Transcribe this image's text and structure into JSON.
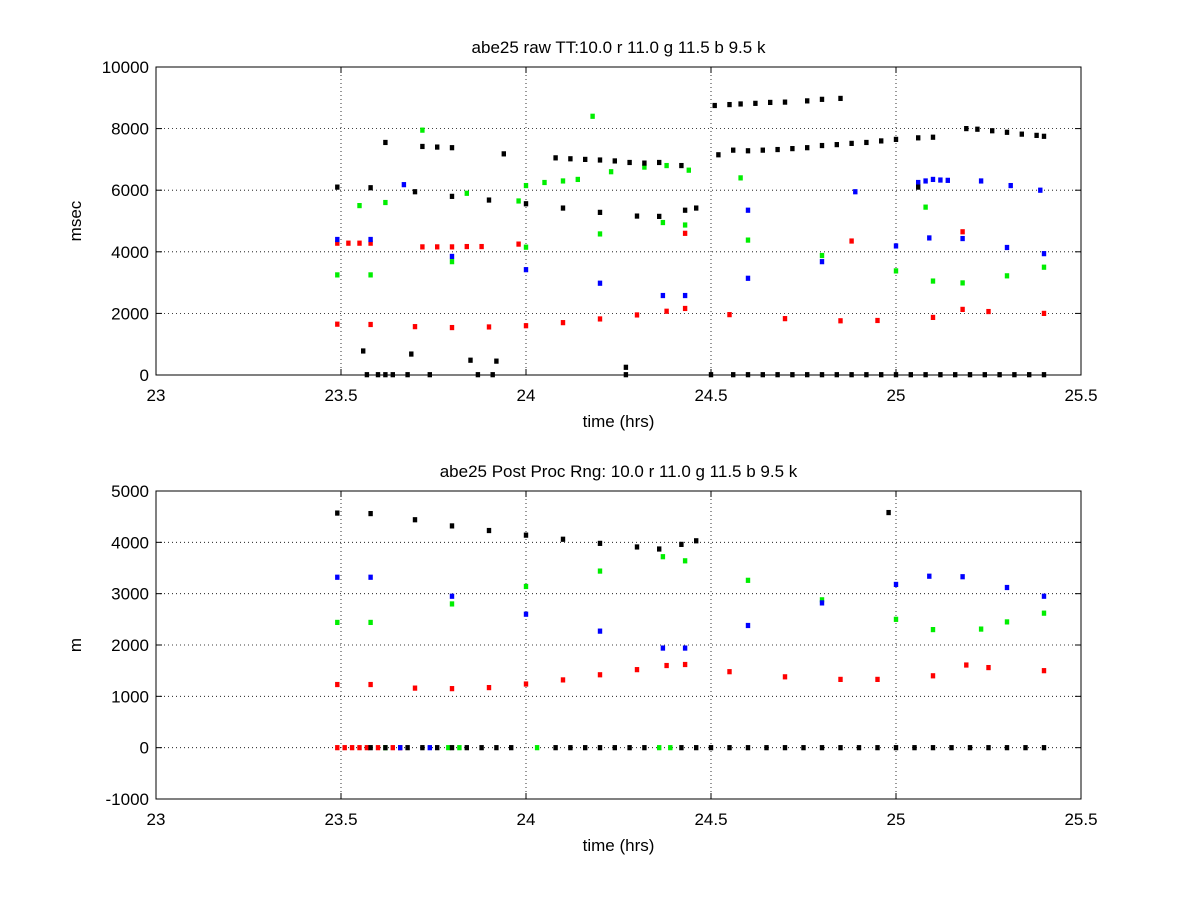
{
  "chart_data": [
    {
      "type": "scatter",
      "title": "abe25 raw TT:10.0 r  11.0 g  11.5 b  9.5 k",
      "xlabel": "time (hrs)",
      "ylabel": "msec",
      "xlim": [
        23,
        25.5
      ],
      "ylim": [
        0,
        10000
      ],
      "xticks": [
        23,
        23.5,
        24,
        24.5,
        25,
        25.5
      ],
      "xtick_labels": [
        "23",
        "23.5",
        "24",
        "24.5",
        "25",
        "25.5"
      ],
      "yticks": [
        0,
        2000,
        4000,
        6000,
        8000,
        10000
      ],
      "ytick_labels": [
        "0",
        "2000",
        "4000",
        "6000",
        "8000",
        "10000"
      ],
      "grid": true,
      "series": [
        {
          "color": "#ff0000",
          "x": [
            23.49,
            23.58,
            23.7,
            23.8,
            23.9,
            24.0,
            24.1,
            24.2,
            24.3,
            24.38,
            24.43,
            24.55,
            24.7,
            24.85,
            24.95,
            25.1,
            25.18,
            25.25,
            25.4
          ],
          "y": [
            1650,
            1640,
            1570,
            1540,
            1560,
            1600,
            1700,
            1820,
            1950,
            2070,
            2160,
            1960,
            1830,
            1760,
            1770,
            1870,
            2130,
            2060,
            2000
          ]
        },
        {
          "color": "#ff0000",
          "x": [
            23.49,
            23.52,
            23.55,
            23.58,
            23.72,
            23.76,
            23.8,
            23.84,
            23.88,
            23.98,
            24.43,
            24.88,
            25.18
          ],
          "y": [
            4280,
            4280,
            4280,
            4280,
            4160,
            4160,
            4160,
            4170,
            4170,
            4250,
            4600,
            4350,
            4650
          ]
        },
        {
          "color": "#00ee00",
          "x": [
            23.49,
            23.58,
            23.8,
            24.0,
            24.2,
            24.37,
            24.43,
            24.6,
            24.8,
            25.0,
            25.1,
            25.18,
            25.3,
            25.4
          ],
          "y": [
            3250,
            3250,
            3680,
            4150,
            4580,
            4950,
            4870,
            4380,
            3880,
            3380,
            3050,
            2990,
            3220,
            3500
          ]
        },
        {
          "color": "#00ee00",
          "x": [
            23.55,
            23.62,
            23.72,
            23.84,
            23.98,
            24.0,
            24.05,
            24.1,
            24.14,
            24.18,
            24.23,
            24.32,
            24.38,
            24.44,
            24.58,
            25.08
          ],
          "y": [
            5500,
            5600,
            7950,
            5900,
            5650,
            6150,
            6250,
            6300,
            6350,
            8400,
            6600,
            6750,
            6800,
            6650,
            6400,
            5450
          ]
        },
        {
          "color": "#0000ff",
          "x": [
            23.49,
            23.58,
            23.8,
            24.0,
            24.2,
            24.37,
            24.43,
            24.6,
            24.8,
            25.0,
            25.09,
            25.18,
            25.3,
            25.4
          ],
          "y": [
            4400,
            4400,
            3850,
            3420,
            2980,
            2580,
            2580,
            3140,
            3680,
            4190,
            4450,
            4430,
            4140,
            3940
          ]
        },
        {
          "color": "#0000ff",
          "x": [
            23.67,
            24.6,
            24.89,
            25.06,
            25.08,
            25.1,
            25.12,
            25.14,
            25.23,
            25.31,
            25.39
          ],
          "y": [
            6180,
            5350,
            5950,
            6250,
            6300,
            6350,
            6330,
            6320,
            6300,
            6150,
            6000
          ]
        },
        {
          "color": "#000000",
          "x": [
            23.49,
            23.58,
            23.7,
            23.8,
            23.9,
            24.0,
            24.1,
            24.2,
            24.3,
            24.36,
            24.43,
            24.46
          ],
          "y": [
            6100,
            6080,
            5950,
            5800,
            5680,
            5560,
            5420,
            5280,
            5160,
            5150,
            5350,
            5420
          ]
        },
        {
          "color": "#000000",
          "x": [
            23.62,
            23.72,
            23.76,
            23.8,
            23.94,
            24.08,
            24.12,
            24.16,
            24.2,
            24.24,
            24.28,
            24.32,
            24.36,
            24.42
          ],
          "y": [
            7550,
            7420,
            7400,
            7380,
            7180,
            7050,
            7020,
            7000,
            6980,
            6950,
            6900,
            6880,
            6900,
            6800
          ]
        },
        {
          "color": "#000000",
          "x": [
            24.52,
            24.56,
            24.6,
            24.64,
            24.68,
            24.72,
            24.76,
            24.8,
            24.84,
            24.88,
            24.92,
            24.96,
            25.0,
            25.06,
            25.1
          ],
          "y": [
            7150,
            7300,
            7280,
            7300,
            7320,
            7350,
            7380,
            7450,
            7480,
            7520,
            7550,
            7600,
            7650,
            7700,
            7720
          ]
        },
        {
          "color": "#000000",
          "x": [
            24.51,
            24.55,
            24.58,
            24.62,
            24.66,
            24.7,
            24.76,
            24.8,
            24.85
          ],
          "y": [
            8750,
            8780,
            8800,
            8820,
            8850,
            8860,
            8900,
            8950,
            8980
          ]
        },
        {
          "color": "#000000",
          "x": [
            25.06,
            25.19,
            25.22,
            25.26,
            25.3,
            25.34,
            25.38,
            25.4
          ],
          "y": [
            6100,
            8000,
            7980,
            7930,
            7880,
            7820,
            7780,
            7750
          ]
        },
        {
          "color": "#000000",
          "x": [
            23.57,
            23.6,
            23.62,
            23.64,
            23.68,
            23.74,
            23.87,
            23.91,
            24.27,
            24.5,
            24.56,
            24.6,
            24.64,
            24.68,
            24.72,
            24.76,
            24.8,
            24.84,
            24.88,
            24.92,
            24.96,
            25.0,
            25.04,
            25.08,
            25.12,
            25.16,
            25.2,
            25.24,
            25.28,
            25.32,
            25.36,
            25.4
          ],
          "y": [
            10,
            10,
            10,
            10,
            10,
            10,
            10,
            10,
            10,
            10,
            10,
            10,
            10,
            10,
            10,
            10,
            10,
            10,
            10,
            10,
            10,
            10,
            10,
            10,
            10,
            10,
            10,
            10,
            10,
            10,
            10,
            10
          ]
        },
        {
          "color": "#000000",
          "x": [
            23.56,
            23.69,
            23.85,
            23.92,
            24.27
          ],
          "y": [
            780,
            680,
            480,
            450,
            250
          ]
        }
      ]
    },
    {
      "type": "scatter",
      "title": "abe25 Post Proc Rng: 10.0 r  11.0 g  11.5 b  9.5  k",
      "xlabel": "time (hrs)",
      "ylabel": "m",
      "xlim": [
        23,
        25.5
      ],
      "ylim": [
        -1000,
        5000
      ],
      "xticks": [
        23,
        23.5,
        24,
        24.5,
        25,
        25.5
      ],
      "xtick_labels": [
        "23",
        "23.5",
        "24",
        "24.5",
        "25",
        "25.5"
      ],
      "yticks": [
        -1000,
        0,
        1000,
        2000,
        3000,
        4000,
        5000
      ],
      "ytick_labels": [
        "-1000",
        "0",
        "1000",
        "2000",
        "3000",
        "4000",
        "5000"
      ],
      "grid": true,
      "series": [
        {
          "color": "#ff0000",
          "x": [
            23.49,
            23.58,
            23.7,
            23.8,
            23.9,
            24.0,
            24.1,
            24.2,
            24.3,
            24.38,
            24.43,
            24.55,
            24.7,
            24.85,
            24.95,
            25.1,
            25.19,
            25.25,
            25.4
          ],
          "y": [
            1230,
            1230,
            1160,
            1150,
            1170,
            1240,
            1320,
            1420,
            1520,
            1600,
            1620,
            1480,
            1380,
            1330,
            1330,
            1400,
            1610,
            1560,
            1500
          ]
        },
        {
          "color": "#00ee00",
          "x": [
            23.49,
            23.58,
            23.8,
            24.0,
            24.2,
            24.37,
            24.43,
            24.6,
            24.8,
            25.0,
            25.1
          ],
          "y": [
            2440,
            2440,
            2800,
            3140,
            3440,
            3720,
            3640,
            3260,
            2880,
            2500,
            2300
          ]
        },
        {
          "color": "#00ee00",
          "x": [
            25.23,
            25.3,
            25.4
          ],
          "y": [
            2310,
            2450,
            2620
          ]
        },
        {
          "color": "#0000ff",
          "x": [
            23.49,
            23.58,
            23.8,
            24.0,
            24.2,
            24.37,
            24.43,
            24.6,
            24.8,
            25.0,
            25.09,
            25.18,
            25.3,
            25.4
          ],
          "y": [
            3320,
            3320,
            2950,
            2600,
            2270,
            1940,
            1940,
            2380,
            2820,
            3180,
            3340,
            3330,
            3120,
            2950
          ]
        },
        {
          "color": "#000000",
          "x": [
            23.49,
            23.58,
            23.7,
            23.8,
            23.9,
            24.0,
            24.1,
            24.2,
            24.3,
            24.36,
            24.42,
            24.46
          ],
          "y": [
            4570,
            4560,
            4440,
            4320,
            4230,
            4140,
            4060,
            3980,
            3910,
            3870,
            3960,
            4030
          ]
        },
        {
          "color": "#000000",
          "x": [
            24.98
          ],
          "y": [
            4580
          ]
        },
        {
          "color": "#ff0000",
          "x": [
            23.49,
            23.51,
            23.53,
            23.55,
            23.57,
            23.6,
            23.64,
            23.66
          ],
          "y": [
            0,
            0,
            0,
            0,
            0,
            0,
            0,
            0
          ]
        },
        {
          "color": "#00ee00",
          "x": [
            23.62,
            23.79,
            23.82,
            24.03,
            24.36,
            24.39
          ],
          "y": [
            0,
            0,
            0,
            0,
            0,
            0
          ]
        },
        {
          "color": "#0000ff",
          "x": [
            23.66,
            23.74
          ],
          "y": [
            0,
            0
          ]
        },
        {
          "color": "#000000",
          "x": [
            23.58,
            23.62,
            23.68,
            23.72,
            23.76,
            23.8,
            23.84,
            23.88,
            23.92,
            23.96,
            24.08,
            24.12,
            24.16,
            24.2,
            24.24,
            24.28,
            24.32,
            24.42,
            24.46,
            24.5,
            24.55,
            24.6,
            24.65,
            24.7,
            24.75,
            24.8,
            24.85,
            24.9,
            24.95,
            25.0,
            25.05,
            25.1,
            25.15,
            25.2,
            25.25,
            25.3,
            25.35,
            25.4
          ],
          "y": [
            0,
            0,
            0,
            0,
            0,
            0,
            0,
            0,
            0,
            0,
            0,
            0,
            0,
            0,
            0,
            0,
            0,
            0,
            0,
            0,
            0,
            0,
            0,
            0,
            0,
            0,
            0,
            0,
            0,
            0,
            0,
            0,
            0,
            0,
            0,
            0,
            0,
            0
          ]
        }
      ]
    }
  ]
}
